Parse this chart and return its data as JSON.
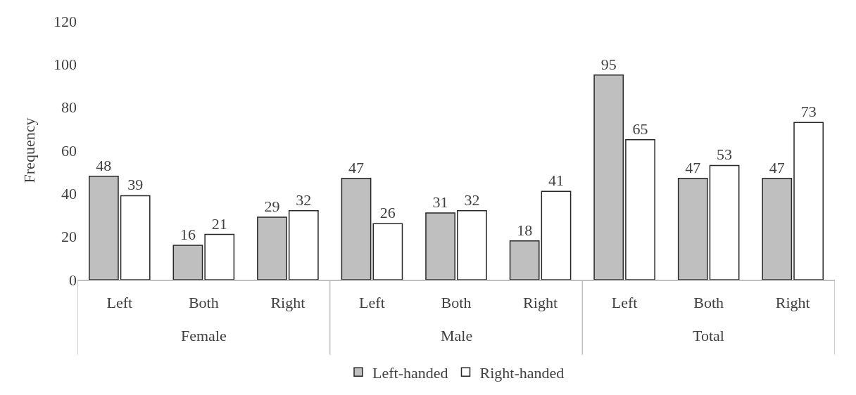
{
  "chart_data": {
    "type": "bar",
    "ylabel": "Frequency",
    "categories": [
      "Left",
      "Both",
      "Right",
      "Left",
      "Both",
      "Right",
      "Left",
      "Both",
      "Right"
    ],
    "series": [
      {
        "name": "Left-handed",
        "color": "#bfbfbf",
        "values": [
          48,
          16,
          29,
          47,
          31,
          18,
          95,
          47,
          47
        ]
      },
      {
        "name": "Right-handed",
        "color": "#ffffff",
        "values": [
          39,
          21,
          32,
          26,
          32,
          41,
          65,
          53,
          73
        ]
      }
    ],
    "annotations": [
      "Female",
      "Male",
      "Total"
    ],
    "ylim": [
      0,
      120
    ],
    "yticks": [
      0,
      20,
      40,
      60,
      80,
      100,
      120
    ],
    "grid": false,
    "legend": "bottom",
    "data_labels": true
  }
}
